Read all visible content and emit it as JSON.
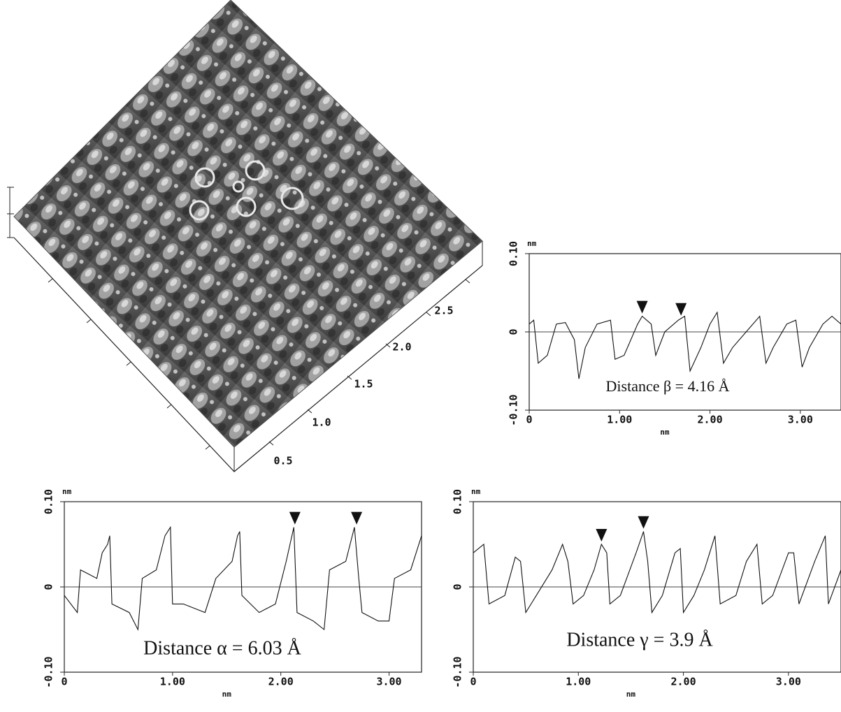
{
  "chart_data": [
    {
      "type": "line",
      "annotation": "Distance β = 4.16 Å",
      "x_label": "nm",
      "y_label": "nm",
      "xlim": [
        0,
        3.45
      ],
      "ylim": [
        -0.1,
        0.1
      ],
      "xticks": [
        0,
        {
          "value": 1,
          "label": "1.00"
        },
        {
          "value": 2,
          "label": "2.00"
        },
        {
          "value": 3,
          "label": "3.00"
        }
      ],
      "yticks": [
        {
          "value": -0.1,
          "label": "-0.10"
        },
        0,
        {
          "value": 0.1,
          "label": "0.10"
        }
      ],
      "zero_line": true,
      "color": "#111111",
      "markers": [
        1.25,
        1.68
      ],
      "x": [
        0,
        0.05,
        0.1,
        0.2,
        0.3,
        0.4,
        0.5,
        0.55,
        0.62,
        0.75,
        0.9,
        0.95,
        1.05,
        1.2,
        1.25,
        1.35,
        1.4,
        1.5,
        1.65,
        1.72,
        1.78,
        1.9,
        2.0,
        2.08,
        2.15,
        2.25,
        2.4,
        2.55,
        2.62,
        2.7,
        2.85,
        2.95,
        3.02,
        3.1,
        3.25,
        3.35,
        3.45
      ],
      "values": [
        0.01,
        0.015,
        -0.04,
        -0.03,
        0.01,
        0.012,
        -0.01,
        -0.06,
        -0.02,
        0.01,
        0.015,
        -0.035,
        -0.03,
        0.01,
        0.02,
        0.01,
        -0.03,
        0.0,
        0.015,
        0.02,
        -0.05,
        -0.02,
        0.01,
        0.025,
        -0.04,
        -0.02,
        0.0,
        0.02,
        -0.04,
        -0.02,
        0.01,
        0.015,
        -0.045,
        -0.02,
        0.01,
        0.02,
        0.01
      ]
    },
    {
      "type": "line",
      "annotation": "Distance α = 6.03 Å",
      "x_label": "nm",
      "y_label": "nm",
      "xlim": [
        0,
        3.3
      ],
      "ylim": [
        -0.1,
        0.1
      ],
      "xticks": [
        0,
        {
          "value": 1,
          "label": "1.00"
        },
        {
          "value": 2,
          "label": "2.00"
        },
        {
          "value": 3,
          "label": "3.00"
        }
      ],
      "yticks": [
        {
          "value": -0.1,
          "label": "-0.10"
        },
        0,
        {
          "value": 0.1,
          "label": "0.10"
        }
      ],
      "zero_line": true,
      "color": "#111111",
      "markers": [
        2.13,
        2.7
      ],
      "x": [
        0,
        0.12,
        0.15,
        0.3,
        0.35,
        0.4,
        0.42,
        0.44,
        0.6,
        0.68,
        0.72,
        0.85,
        0.93,
        0.98,
        1.0,
        1.1,
        1.3,
        1.4,
        1.55,
        1.6,
        1.62,
        1.64,
        1.8,
        1.95,
        2.05,
        2.12,
        2.15,
        2.3,
        2.4,
        2.45,
        2.6,
        2.68,
        2.72,
        2.75,
        2.9,
        3.0,
        3.05,
        3.2,
        3.3
      ],
      "values": [
        -0.01,
        -0.03,
        0.02,
        0.01,
        0.04,
        0.05,
        0.06,
        -0.02,
        -0.03,
        -0.05,
        0.01,
        0.02,
        0.06,
        0.07,
        -0.02,
        -0.02,
        -0.03,
        0.01,
        0.03,
        0.06,
        0.065,
        -0.01,
        -0.03,
        -0.02,
        0.03,
        0.07,
        -0.03,
        -0.04,
        -0.05,
        0.02,
        0.03,
        0.07,
        0.01,
        -0.03,
        -0.04,
        -0.04,
        0.01,
        0.02,
        0.06
      ]
    },
    {
      "type": "line",
      "annotation": "Distance γ = 3.9 Å",
      "x_label": "nm",
      "y_label": "nm",
      "xlim": [
        0,
        3.5
      ],
      "ylim": [
        -0.1,
        0.1
      ],
      "xticks": [
        0,
        {
          "value": 1,
          "label": "1.00"
        },
        {
          "value": 2,
          "label": "2.00"
        },
        {
          "value": 3,
          "label": "3.00"
        }
      ],
      "yticks": [
        {
          "value": -0.1,
          "label": "-0.10"
        },
        0,
        {
          "value": 0.1,
          "label": "0.10"
        }
      ],
      "zero_line": true,
      "color": "#111111",
      "markers": [
        1.22,
        1.62
      ],
      "x": [
        0,
        0.1,
        0.15,
        0.3,
        0.4,
        0.45,
        0.5,
        0.6,
        0.75,
        0.85,
        0.9,
        0.95,
        1.05,
        1.15,
        1.22,
        1.27,
        1.3,
        1.4,
        1.55,
        1.62,
        1.66,
        1.7,
        1.8,
        1.92,
        1.97,
        2.0,
        2.1,
        2.2,
        2.3,
        2.35,
        2.5,
        2.6,
        2.7,
        2.75,
        2.85,
        3.0,
        3.05,
        3.1,
        3.25,
        3.35,
        3.38,
        3.5
      ],
      "values": [
        0.04,
        0.05,
        -0.02,
        -0.01,
        0.035,
        0.03,
        -0.03,
        -0.01,
        0.02,
        0.05,
        0.03,
        -0.02,
        -0.01,
        0.02,
        0.05,
        0.04,
        -0.02,
        -0.01,
        0.04,
        0.065,
        0.03,
        -0.03,
        -0.01,
        0.04,
        0.045,
        -0.03,
        -0.01,
        0.02,
        0.06,
        -0.02,
        -0.01,
        0.03,
        0.05,
        -0.02,
        -0.01,
        0.04,
        0.04,
        -0.02,
        0.03,
        0.06,
        -0.02,
        0.02
      ]
    }
  ],
  "surface": {
    "tick_labels": [
      "0.5",
      "1.0",
      "1.5",
      "2.0",
      "2.5"
    ]
  }
}
